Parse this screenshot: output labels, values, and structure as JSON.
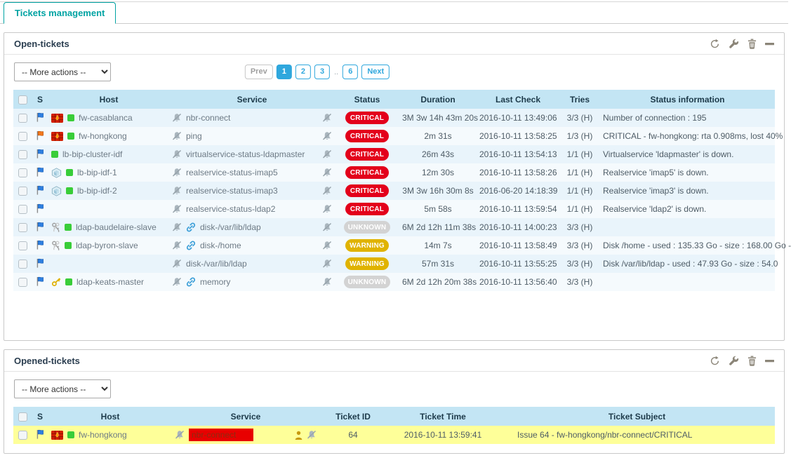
{
  "tab": {
    "label": "Tickets management"
  },
  "panel_action_icons": [
    "refresh",
    "wrench",
    "trash",
    "collapse"
  ],
  "status_colors": {
    "CRITICAL": "#e3001b",
    "WARNING": "#e0b300",
    "UNKNOWN": "#d3d3d3"
  },
  "accent_colors": {
    "teal": "#00a3a3",
    "pagination_blue": "#2fa7dd",
    "ticket_row_highlight": "#feff99",
    "service_critical_bg": "#e80000",
    "service_critical_text": "#8f2b10"
  },
  "open_tickets": {
    "title": "Open-tickets",
    "more_actions_label": "-- More actions --",
    "pagination": {
      "prev": "Prev",
      "pages": [
        "1",
        "2",
        "3"
      ],
      "gap": "..",
      "last_page": "6",
      "next": "Next",
      "active_page": "1"
    },
    "columns": [
      "S",
      "Host",
      "Service",
      "Status",
      "Duration",
      "Last Check",
      "Tries",
      "Status information"
    ],
    "rows": [
      {
        "flag": "blue",
        "host_icon": "firewall",
        "host_up": true,
        "host": "fw-casablanca",
        "service_link": false,
        "service": "nbr-connect",
        "status": "CRITICAL",
        "duration": "3M 3w 14h 43m 20s",
        "last_check": "2016-10-11 13:49:06",
        "tries": "3/3 (H)",
        "info": "Number of connection : 195"
      },
      {
        "flag": "orange",
        "host_icon": "firewall",
        "host_up": true,
        "host": "fw-hongkong",
        "service_link": false,
        "service": "ping",
        "status": "CRITICAL",
        "duration": "2m 31s",
        "last_check": "2016-10-11 13:58:25",
        "tries": "1/3 (H)",
        "info": "CRITICAL - fw-hongkong: rta 0.908ms, lost 40%"
      },
      {
        "flag": "blue",
        "host_icon": null,
        "host_up": true,
        "host": "lb-bip-cluster-idf",
        "service_link": false,
        "service": "virtualservice-status-ldapmaster",
        "status": "CRITICAL",
        "duration": "26m 43s",
        "last_check": "2016-10-11 13:54:13",
        "tries": "1/1 (H)",
        "info": "Virtualservice 'ldapmaster' is down."
      },
      {
        "flag": "blue",
        "host_icon": "loadbalancer",
        "host_up": true,
        "host": "lb-bip-idf-1",
        "service_link": false,
        "service": "realservice-status-imap5",
        "status": "CRITICAL",
        "duration": "12m 30s",
        "last_check": "2016-10-11 13:58:26",
        "tries": "1/1 (H)",
        "info": "Realservice 'imap5' is down."
      },
      {
        "flag": "blue",
        "host_icon": "loadbalancer",
        "host_up": true,
        "host": "lb-bip-idf-2",
        "service_link": false,
        "service": "realservice-status-imap3",
        "status": "CRITICAL",
        "duration": "3M 3w 16h 30m 8s",
        "last_check": "2016-06-20 14:18:39",
        "tries": "1/1 (H)",
        "info": "Realservice 'imap3' is down."
      },
      {
        "flag": "blue",
        "host_icon": null,
        "host_up": false,
        "host": "",
        "service_link": false,
        "service": "realservice-status-ldap2",
        "status": "CRITICAL",
        "duration": "5m 58s",
        "last_check": "2016-10-11 13:59:54",
        "tries": "1/1 (H)",
        "info": "Realservice 'ldap2' is down."
      },
      {
        "flag": "blue",
        "host_icon": "keys",
        "host_up": true,
        "host": "ldap-baudelaire-slave",
        "service_link": true,
        "service": "disk-/var/lib/ldap",
        "status": "UNKNOWN",
        "duration": "6M 2d 12h 11m 38s",
        "last_check": "2016-10-11 14:00:23",
        "tries": "3/3 (H)",
        "info": ""
      },
      {
        "flag": "blue",
        "host_icon": "keys",
        "host_up": true,
        "host": "ldap-byron-slave",
        "service_link": true,
        "service": "disk-/home",
        "status": "WARNING",
        "duration": "14m 7s",
        "last_check": "2016-10-11 13:58:49",
        "tries": "3/3 (H)",
        "info": "Disk /home - used : 135.33 Go - size : 168.00 Go -"
      },
      {
        "flag": "blue",
        "host_icon": null,
        "host_up": false,
        "host": "",
        "service_link": false,
        "service": "disk-/var/lib/ldap",
        "status": "WARNING",
        "duration": "57m 31s",
        "last_check": "2016-10-11 13:55:25",
        "tries": "3/3 (H)",
        "info": "Disk /var/lib/ldap - used : 47.93 Go - size : 54.0"
      },
      {
        "flag": "blue",
        "host_icon": "key-gold",
        "host_up": true,
        "host": "ldap-keats-master",
        "service_link": true,
        "service": "memory",
        "status": "UNKNOWN",
        "duration": "6M 2d 12h 20m 38s",
        "last_check": "2016-10-11 13:56:40",
        "tries": "3/3 (H)",
        "info": ""
      }
    ]
  },
  "opened_tickets": {
    "title": "Opened-tickets",
    "more_actions_label": "-- More actions --",
    "columns": [
      "S",
      "Host",
      "Service",
      "Ticket ID",
      "Ticket Time",
      "Ticket Subject"
    ],
    "rows": [
      {
        "flag": "blue",
        "host_icon": "firewall",
        "host_up": true,
        "host": "fw-hongkong",
        "service": "nbr-connect",
        "service_highlight": "critical",
        "has_contact": true,
        "ticket_id": "64",
        "ticket_time": "2016-10-11 13:59:41",
        "ticket_subject": "Issue 64 - fw-hongkong/nbr-connect/CRITICAL"
      }
    ]
  }
}
